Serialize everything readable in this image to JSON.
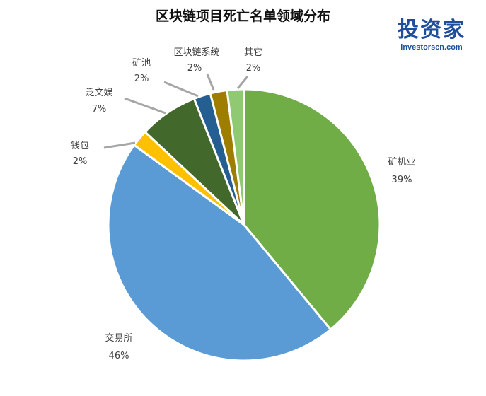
{
  "header": {
    "title": "区块链项目死亡名单领域分布"
  },
  "logo": {
    "main": "投资家",
    "sub": "investorscn.com"
  },
  "chart_data": {
    "type": "pie",
    "title": "区块链项目死亡名单领域分布",
    "start_angle_deg": 0,
    "direction": "clockwise",
    "slices": [
      {
        "name": "矿机业",
        "value": 39,
        "label": "39%",
        "color": "#70ad47"
      },
      {
        "name": "交易所",
        "value": 46,
        "label": "46%",
        "color": "#5b9bd5"
      },
      {
        "name": "钱包",
        "value": 2,
        "label": "2%",
        "color": "#ffc000"
      },
      {
        "name": "泛文娱",
        "value": 7,
        "label": "7%",
        "color": "#43682b"
      },
      {
        "name": "矿池",
        "value": 2,
        "label": "2%",
        "color": "#255e91"
      },
      {
        "name": "区块链系统",
        "value": 2,
        "label": "2%",
        "color": "#9e7d00"
      },
      {
        "name": "其它",
        "value": 2,
        "label": "2%",
        "color": "#8fca72"
      }
    ]
  }
}
